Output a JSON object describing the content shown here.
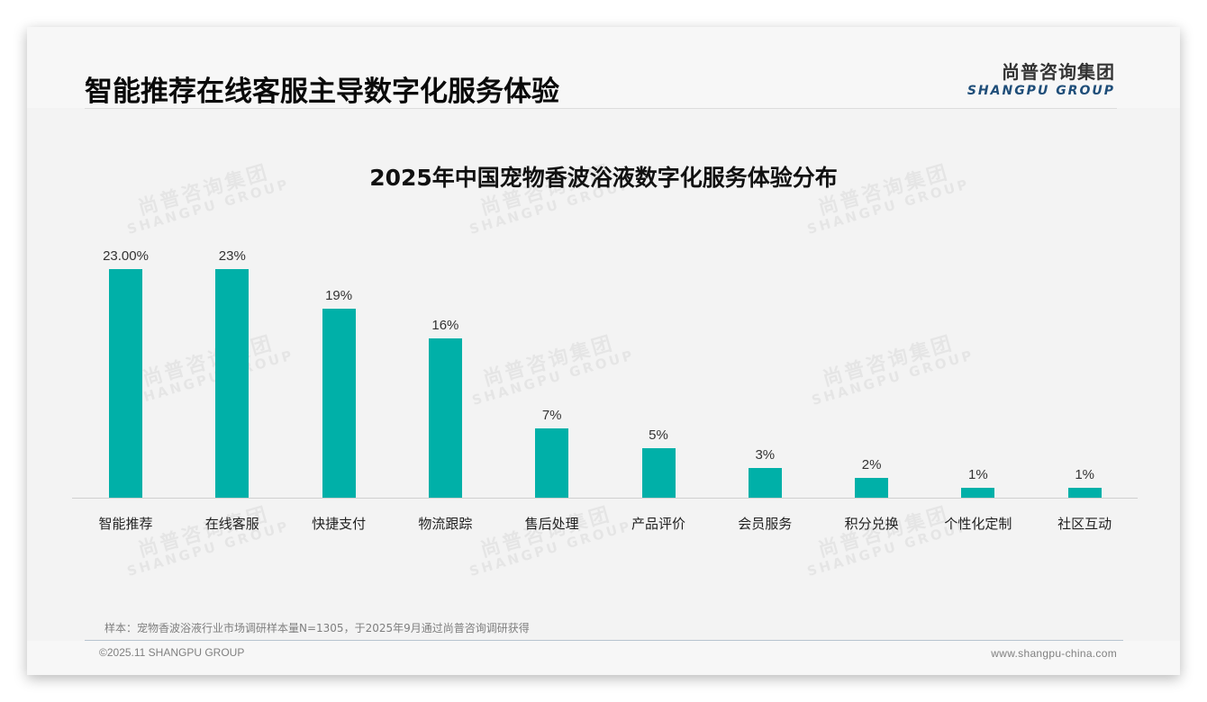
{
  "header": {
    "title": "智能推荐在线客服主导数字化服务体验",
    "logo_cn": "尚普咨询集团",
    "logo_en": "SHANGPU GROUP"
  },
  "watermark": {
    "cn": "尚普咨询集团",
    "en": "SHANGPU GROUP"
  },
  "chart_data": {
    "type": "bar",
    "title": "2025年中国宠物香波浴液数字化服务体验分布",
    "xlabel": "",
    "ylabel": "",
    "ylim": [
      0,
      25
    ],
    "grid": false,
    "legend": "none",
    "color": "#00b0a8",
    "categories": [
      "智能推荐",
      "在线客服",
      "快捷支付",
      "物流跟踪",
      "售后处理",
      "产品评价",
      "会员服务",
      "积分兑换",
      "个性化定制",
      "社区互动"
    ],
    "values": [
      23,
      23,
      19,
      16,
      7,
      5,
      3,
      2,
      1,
      1
    ],
    "value_labels": [
      "23.00%",
      "23%",
      "19%",
      "16%",
      "7%",
      "5%",
      "3%",
      "2%",
      "1%",
      "1%"
    ]
  },
  "footer": {
    "note": "样本：宠物香波浴液行业市场调研样本量N=1305，于2025年9月通过尚普咨询调研获得",
    "copyright": "©2025.11 SHANGPU GROUP",
    "website": "www.shangpu-china.com"
  }
}
